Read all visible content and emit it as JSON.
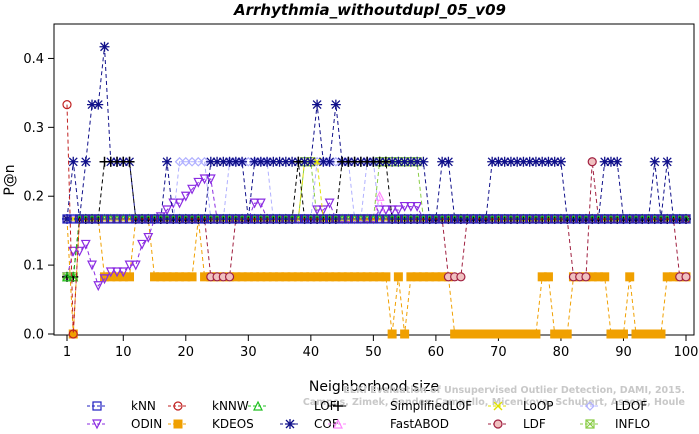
{
  "chart_data": {
    "type": "line",
    "title": "Arrhythmia_withoutdupl_05_v09",
    "xlabel": "Neighborhood size",
    "ylabel": "P@n",
    "xlim": [
      1,
      100
    ],
    "ylim": [
      0,
      0.45
    ],
    "xticks": [
      "1",
      "10",
      "20",
      "30",
      "40",
      "50",
      "60",
      "70",
      "80",
      "90",
      "100"
    ],
    "yticks": [
      "0.0",
      "0.1",
      "0.2",
      "0.3",
      "0.4"
    ],
    "watermark": [
      "ELKI Evaluation of Unsupervised Outlier Detection, DAMI, 2015.",
      "Campos, Zimek, Sander, Campello, Micenkova, Schubert, Assent, Houle"
    ],
    "series": [
      {
        "name": "kNN",
        "color": "#2020c0",
        "marker": "square",
        "values": [
          [
            1,
            0.167
          ],
          [
            100,
            0.167
          ]
        ]
      },
      {
        "name": "kNNW",
        "color": "#c02020",
        "marker": "circle",
        "values": [
          [
            1,
            0.333
          ],
          [
            2,
            0.0
          ],
          [
            3,
            0.167
          ],
          [
            100,
            0.167
          ]
        ]
      },
      {
        "name": "LOF",
        "color": "#20c020",
        "marker": "triangle",
        "values": [
          [
            1,
            0.083
          ],
          [
            2,
            0.083
          ],
          [
            3,
            0.167
          ],
          [
            100,
            0.167
          ]
        ]
      },
      {
        "name": "SimplifiedLOF",
        "color": "#000000",
        "marker": "plus",
        "values": [
          [
            1,
            0.083
          ],
          [
            3,
            0.167
          ],
          [
            6,
            0.167
          ],
          [
            7,
            0.25
          ],
          [
            8,
            0.25
          ],
          [
            9,
            0.25
          ],
          [
            10,
            0.25
          ],
          [
            11,
            0.25
          ],
          [
            12,
            0.167
          ],
          [
            37,
            0.167
          ],
          [
            38,
            0.25
          ],
          [
            39,
            0.167
          ],
          [
            44,
            0.167
          ],
          [
            45,
            0.25
          ],
          [
            52,
            0.25
          ],
          [
            53,
            0.167
          ],
          [
            100,
            0.167
          ]
        ]
      },
      {
        "name": "COF",
        "color": "#10108a",
        "marker": "asterisk",
        "values": [
          [
            1,
            0.167
          ],
          [
            2,
            0.25
          ],
          [
            3,
            0.167
          ],
          [
            4,
            0.25
          ],
          [
            5,
            0.333
          ],
          [
            6,
            0.333
          ],
          [
            7,
            0.417
          ],
          [
            8,
            0.25
          ],
          [
            9,
            0.25
          ],
          [
            10,
            0.25
          ],
          [
            11,
            0.25
          ],
          [
            12,
            0.167
          ],
          [
            16,
            0.167
          ],
          [
            17,
            0.25
          ],
          [
            18,
            0.167
          ],
          [
            23,
            0.167
          ],
          [
            24,
            0.25
          ],
          [
            29,
            0.25
          ],
          [
            30,
            0.167
          ],
          [
            31,
            0.25
          ],
          [
            40,
            0.25
          ],
          [
            41,
            0.333
          ],
          [
            42,
            0.25
          ],
          [
            43,
            0.25
          ],
          [
            44,
            0.333
          ],
          [
            45,
            0.25
          ],
          [
            58,
            0.25
          ],
          [
            59,
            0.167
          ],
          [
            60,
            0.167
          ],
          [
            61,
            0.25
          ],
          [
            62,
            0.25
          ],
          [
            63,
            0.167
          ],
          [
            68,
            0.167
          ],
          [
            69,
            0.25
          ],
          [
            80,
            0.25
          ],
          [
            81,
            0.167
          ],
          [
            86,
            0.167
          ],
          [
            87,
            0.25
          ],
          [
            88,
            0.25
          ],
          [
            89,
            0.25
          ],
          [
            90,
            0.167
          ],
          [
            94,
            0.167
          ],
          [
            95,
            0.25
          ],
          [
            96,
            0.167
          ],
          [
            97,
            0.25
          ],
          [
            98,
            0.167
          ],
          [
            100,
            0.167
          ]
        ]
      },
      {
        "name": "ODIN",
        "color": "#8a2be2",
        "marker": "triangle-down",
        "values": [
          [
            1,
            0.083
          ],
          [
            2,
            0.12
          ],
          [
            3,
            0.12
          ],
          [
            4,
            0.13
          ],
          [
            5,
            0.1
          ],
          [
            6,
            0.07
          ],
          [
            7,
            0.08
          ],
          [
            8,
            0.09
          ],
          [
            9,
            0.09
          ],
          [
            10,
            0.09
          ],
          [
            11,
            0.1
          ],
          [
            12,
            0.1
          ],
          [
            13,
            0.13
          ],
          [
            14,
            0.14
          ],
          [
            15,
            0.167
          ],
          [
            16,
            0.17
          ],
          [
            17,
            0.18
          ],
          [
            18,
            0.19
          ],
          [
            19,
            0.19
          ],
          [
            20,
            0.2
          ],
          [
            21,
            0.21
          ],
          [
            22,
            0.22
          ],
          [
            23,
            0.225
          ],
          [
            24,
            0.225
          ],
          [
            25,
            0.167
          ],
          [
            30,
            0.167
          ],
          [
            31,
            0.19
          ],
          [
            32,
            0.19
          ],
          [
            33,
            0.167
          ],
          [
            40,
            0.167
          ],
          [
            41,
            0.18
          ],
          [
            42,
            0.18
          ],
          [
            43,
            0.19
          ],
          [
            44,
            0.167
          ],
          [
            50,
            0.167
          ],
          [
            51,
            0.18
          ],
          [
            52,
            0.18
          ],
          [
            53,
            0.18
          ],
          [
            54,
            0.18
          ],
          [
            55,
            0.185
          ],
          [
            56,
            0.185
          ],
          [
            57,
            0.185
          ],
          [
            58,
            0.167
          ],
          [
            100,
            0.167
          ]
        ]
      },
      {
        "name": "FastABOD",
        "color": "#ff88ff",
        "marker": "triangle",
        "values": [
          [
            1,
            0.167
          ],
          [
            50,
            0.167
          ],
          [
            51,
            0.2
          ],
          [
            52,
            0.167
          ],
          [
            100,
            0.167
          ]
        ]
      },
      {
        "name": "LoOP",
        "color": "#e0e000",
        "marker": "cross",
        "values": [
          [
            1,
            0.167
          ],
          [
            38,
            0.167
          ],
          [
            39,
            0.25
          ],
          [
            40,
            0.25
          ],
          [
            41,
            0.25
          ],
          [
            42,
            0.167
          ],
          [
            100,
            0.167
          ]
        ]
      },
      {
        "name": "LDOF",
        "color": "#b0b0ff",
        "marker": "diamond",
        "values": [
          [
            1,
            0.167
          ],
          [
            18,
            0.167
          ],
          [
            19,
            0.25
          ],
          [
            23,
            0.25
          ],
          [
            24,
            0.167
          ],
          [
            26,
            0.167
          ],
          [
            27,
            0.25
          ],
          [
            33,
            0.25
          ],
          [
            34,
            0.167
          ],
          [
            40,
            0.167
          ],
          [
            41,
            0.25
          ],
          [
            46,
            0.25
          ],
          [
            47,
            0.167
          ],
          [
            48,
            0.167
          ],
          [
            49,
            0.25
          ],
          [
            50,
            0.25
          ],
          [
            51,
            0.167
          ],
          [
            100,
            0.167
          ]
        ]
      },
      {
        "name": "KDEOS",
        "color": "#f0a000",
        "marker": "square-filled",
        "values": [
          [
            1,
            0.167
          ],
          [
            2,
            0.0
          ],
          [
            3,
            0.167
          ],
          [
            6,
            0.167
          ],
          [
            7,
            0.083
          ],
          [
            11,
            0.083
          ],
          [
            12,
            0.167
          ],
          [
            14,
            0.167
          ],
          [
            15,
            0.083
          ],
          [
            21,
            0.083
          ],
          [
            22,
            0.167
          ],
          [
            23,
            0.083
          ],
          [
            24,
            0.083
          ],
          [
            25,
            0.083
          ],
          [
            26,
            0.083
          ],
          [
            27,
            0.083
          ],
          [
            28,
            0.083
          ],
          [
            29,
            0.083
          ],
          [
            30,
            0.083
          ],
          [
            31,
            0.083
          ],
          [
            32,
            0.083
          ],
          [
            33,
            0.083
          ],
          [
            34,
            0.083
          ],
          [
            35,
            0.083
          ],
          [
            36,
            0.083
          ],
          [
            37,
            0.083
          ],
          [
            38,
            0.083
          ],
          [
            39,
            0.083
          ],
          [
            40,
            0.083
          ],
          [
            41,
            0.083
          ],
          [
            42,
            0.083
          ],
          [
            43,
            0.083
          ],
          [
            44,
            0.083
          ],
          [
            45,
            0.083
          ],
          [
            46,
            0.083
          ],
          [
            47,
            0.083
          ],
          [
            48,
            0.083
          ],
          [
            49,
            0.083
          ],
          [
            50,
            0.083
          ],
          [
            51,
            0.083
          ],
          [
            52,
            0.083
          ],
          [
            53,
            0.0
          ],
          [
            54,
            0.083
          ],
          [
            55,
            0.0
          ],
          [
            56,
            0.083
          ],
          [
            57,
            0.083
          ],
          [
            58,
            0.083
          ],
          [
            59,
            0.083
          ],
          [
            60,
            0.083
          ],
          [
            61,
            0.083
          ],
          [
            62,
            0.083
          ],
          [
            63,
            0.0
          ],
          [
            64,
            0.0
          ],
          [
            65,
            0.0
          ],
          [
            66,
            0.0
          ],
          [
            67,
            0.0
          ],
          [
            68,
            0.0
          ],
          [
            69,
            0.0
          ],
          [
            70,
            0.0
          ],
          [
            71,
            0.0
          ],
          [
            72,
            0.0
          ],
          [
            73,
            0.0
          ],
          [
            74,
            0.0
          ],
          [
            75,
            0.0
          ],
          [
            76,
            0.0
          ],
          [
            77,
            0.083
          ],
          [
            78,
            0.083
          ],
          [
            79,
            0.0
          ],
          [
            80,
            0.0
          ],
          [
            81,
            0.0
          ],
          [
            82,
            0.083
          ],
          [
            83,
            0.083
          ],
          [
            84,
            0.083
          ],
          [
            85,
            0.083
          ],
          [
            86,
            0.083
          ],
          [
            87,
            0.083
          ],
          [
            88,
            0.0
          ],
          [
            89,
            0.0
          ],
          [
            90,
            0.0
          ],
          [
            91,
            0.083
          ],
          [
            92,
            0.0
          ],
          [
            93,
            0.0
          ],
          [
            94,
            0.0
          ],
          [
            95,
            0.0
          ],
          [
            96,
            0.0
          ],
          [
            97,
            0.083
          ],
          [
            98,
            0.083
          ],
          [
            99,
            0.083
          ],
          [
            100,
            0.083
          ]
        ]
      },
      {
        "name": "LDF",
        "color": "#a02040",
        "marker": "circle-filled",
        "values": [
          [
            1,
            0.167
          ],
          [
            23,
            0.167
          ],
          [
            24,
            0.083
          ],
          [
            25,
            0.083
          ],
          [
            26,
            0.083
          ],
          [
            27,
            0.083
          ],
          [
            28,
            0.167
          ],
          [
            58,
            0.167
          ],
          [
            59,
            0.167
          ],
          [
            60,
            0.167
          ],
          [
            61,
            0.167
          ],
          [
            62,
            0.083
          ],
          [
            63,
            0.083
          ],
          [
            64,
            0.083
          ],
          [
            65,
            0.167
          ],
          [
            81,
            0.167
          ],
          [
            82,
            0.083
          ],
          [
            83,
            0.083
          ],
          [
            84,
            0.083
          ],
          [
            85,
            0.25
          ],
          [
            86,
            0.167
          ],
          [
            98,
            0.167
          ],
          [
            99,
            0.083
          ],
          [
            100,
            0.083
          ]
        ]
      },
      {
        "name": "INFLO",
        "color": "#88cc44",
        "marker": "square-x",
        "values": [
          [
            1,
            0.083
          ],
          [
            2,
            0.083
          ],
          [
            3,
            0.167
          ],
          [
            38,
            0.167
          ],
          [
            39,
            0.25
          ],
          [
            40,
            0.25
          ],
          [
            41,
            0.167
          ],
          [
            50,
            0.167
          ],
          [
            51,
            0.25
          ],
          [
            52,
            0.25
          ],
          [
            53,
            0.25
          ],
          [
            54,
            0.25
          ],
          [
            55,
            0.25
          ],
          [
            56,
            0.25
          ],
          [
            57,
            0.25
          ],
          [
            58,
            0.167
          ],
          [
            100,
            0.167
          ]
        ]
      }
    ]
  }
}
